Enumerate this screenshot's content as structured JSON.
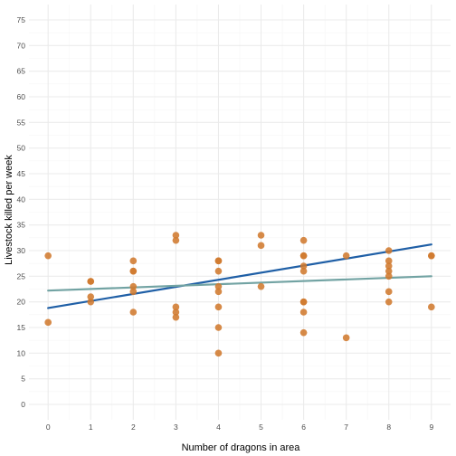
{
  "chart_data": {
    "type": "scatter",
    "title": "",
    "xlabel": "Number of dragons in area",
    "ylabel": "Livestock killed per week",
    "xlim": [
      -0.45,
      9.45
    ],
    "ylim": [
      -3,
      78
    ],
    "x_ticks": [
      0,
      1,
      2,
      3,
      4,
      5,
      6,
      7,
      8,
      9
    ],
    "y_ticks": [
      0,
      5,
      10,
      15,
      20,
      25,
      30,
      35,
      40,
      45,
      50,
      55,
      60,
      65,
      70,
      75
    ],
    "grid": true,
    "points": [
      {
        "x": 0,
        "y": 29
      },
      {
        "x": 0,
        "y": 16
      },
      {
        "x": 1,
        "y": 24
      },
      {
        "x": 1,
        "y": 24
      },
      {
        "x": 1,
        "y": 21
      },
      {
        "x": 1,
        "y": 20
      },
      {
        "x": 2,
        "y": 28
      },
      {
        "x": 2,
        "y": 26
      },
      {
        "x": 2,
        "y": 26
      },
      {
        "x": 2,
        "y": 23
      },
      {
        "x": 2,
        "y": 22
      },
      {
        "x": 2,
        "y": 18
      },
      {
        "x": 3,
        "y": 33
      },
      {
        "x": 3,
        "y": 32
      },
      {
        "x": 3,
        "y": 19
      },
      {
        "x": 3,
        "y": 18
      },
      {
        "x": 3,
        "y": 17
      },
      {
        "x": 4,
        "y": 28
      },
      {
        "x": 4,
        "y": 28
      },
      {
        "x": 4,
        "y": 26
      },
      {
        "x": 4,
        "y": 23
      },
      {
        "x": 4,
        "y": 22
      },
      {
        "x": 4,
        "y": 19
      },
      {
        "x": 4,
        "y": 15
      },
      {
        "x": 4,
        "y": 10
      },
      {
        "x": 5,
        "y": 33
      },
      {
        "x": 5,
        "y": 31
      },
      {
        "x": 5,
        "y": 23
      },
      {
        "x": 6,
        "y": 32
      },
      {
        "x": 6,
        "y": 29
      },
      {
        "x": 6,
        "y": 29
      },
      {
        "x": 6,
        "y": 27
      },
      {
        "x": 6,
        "y": 26
      },
      {
        "x": 6,
        "y": 20
      },
      {
        "x": 6,
        "y": 20
      },
      {
        "x": 6,
        "y": 18
      },
      {
        "x": 6,
        "y": 14
      },
      {
        "x": 7,
        "y": 29
      },
      {
        "x": 7,
        "y": 13
      },
      {
        "x": 8,
        "y": 30
      },
      {
        "x": 8,
        "y": 28
      },
      {
        "x": 8,
        "y": 27
      },
      {
        "x": 8,
        "y": 26
      },
      {
        "x": 8,
        "y": 25
      },
      {
        "x": 8,
        "y": 22
      },
      {
        "x": 8,
        "y": 20
      },
      {
        "x": 9,
        "y": 29
      },
      {
        "x": 9,
        "y": 29
      },
      {
        "x": 9,
        "y": 19
      }
    ],
    "lines": [
      {
        "x": [
          0,
          9
        ],
        "y": [
          18.8,
          31.2
        ],
        "color": "#1f5fa6"
      },
      {
        "x": [
          0,
          9
        ],
        "y": [
          22.2,
          25.0
        ],
        "color": "#72a3a3"
      }
    ],
    "colors": {
      "points": "#d07a2f",
      "grid_major": "#ebebeb",
      "grid_minor": "#f5f5f5"
    }
  }
}
